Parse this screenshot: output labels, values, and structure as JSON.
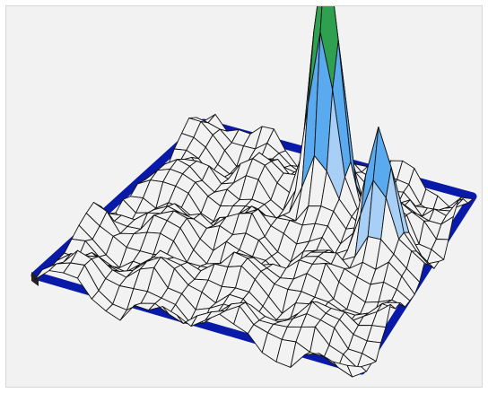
{
  "chart_data": {
    "type": "surface",
    "title": "",
    "grid": "wireframe mesh",
    "base_frame": true,
    "grid_size": [
      24,
      24
    ],
    "baseline_amplitude": 0.06,
    "peaks": [
      {
        "row": 5,
        "col": 13,
        "height": 1.0,
        "width": 1.1
      },
      {
        "row": 9,
        "col": 19,
        "height": 0.52,
        "width": 1.1
      }
    ],
    "colormap": [
      {
        "level": 0.06,
        "color": "#f2f2f2"
      },
      {
        "level": 0.14,
        "color": "#a8cff5"
      },
      {
        "level": 0.3,
        "color": "#5aaaf0"
      },
      {
        "level": 0.55,
        "color": "#2fa050"
      },
      {
        "level": 0.8,
        "color": "#a8d020"
      },
      {
        "level": 1.0,
        "color": "#f7b400"
      }
    ],
    "colors": {
      "background": "#f2f2f2",
      "frame": "#0a1aa8",
      "mesh": "#111111"
    }
  }
}
